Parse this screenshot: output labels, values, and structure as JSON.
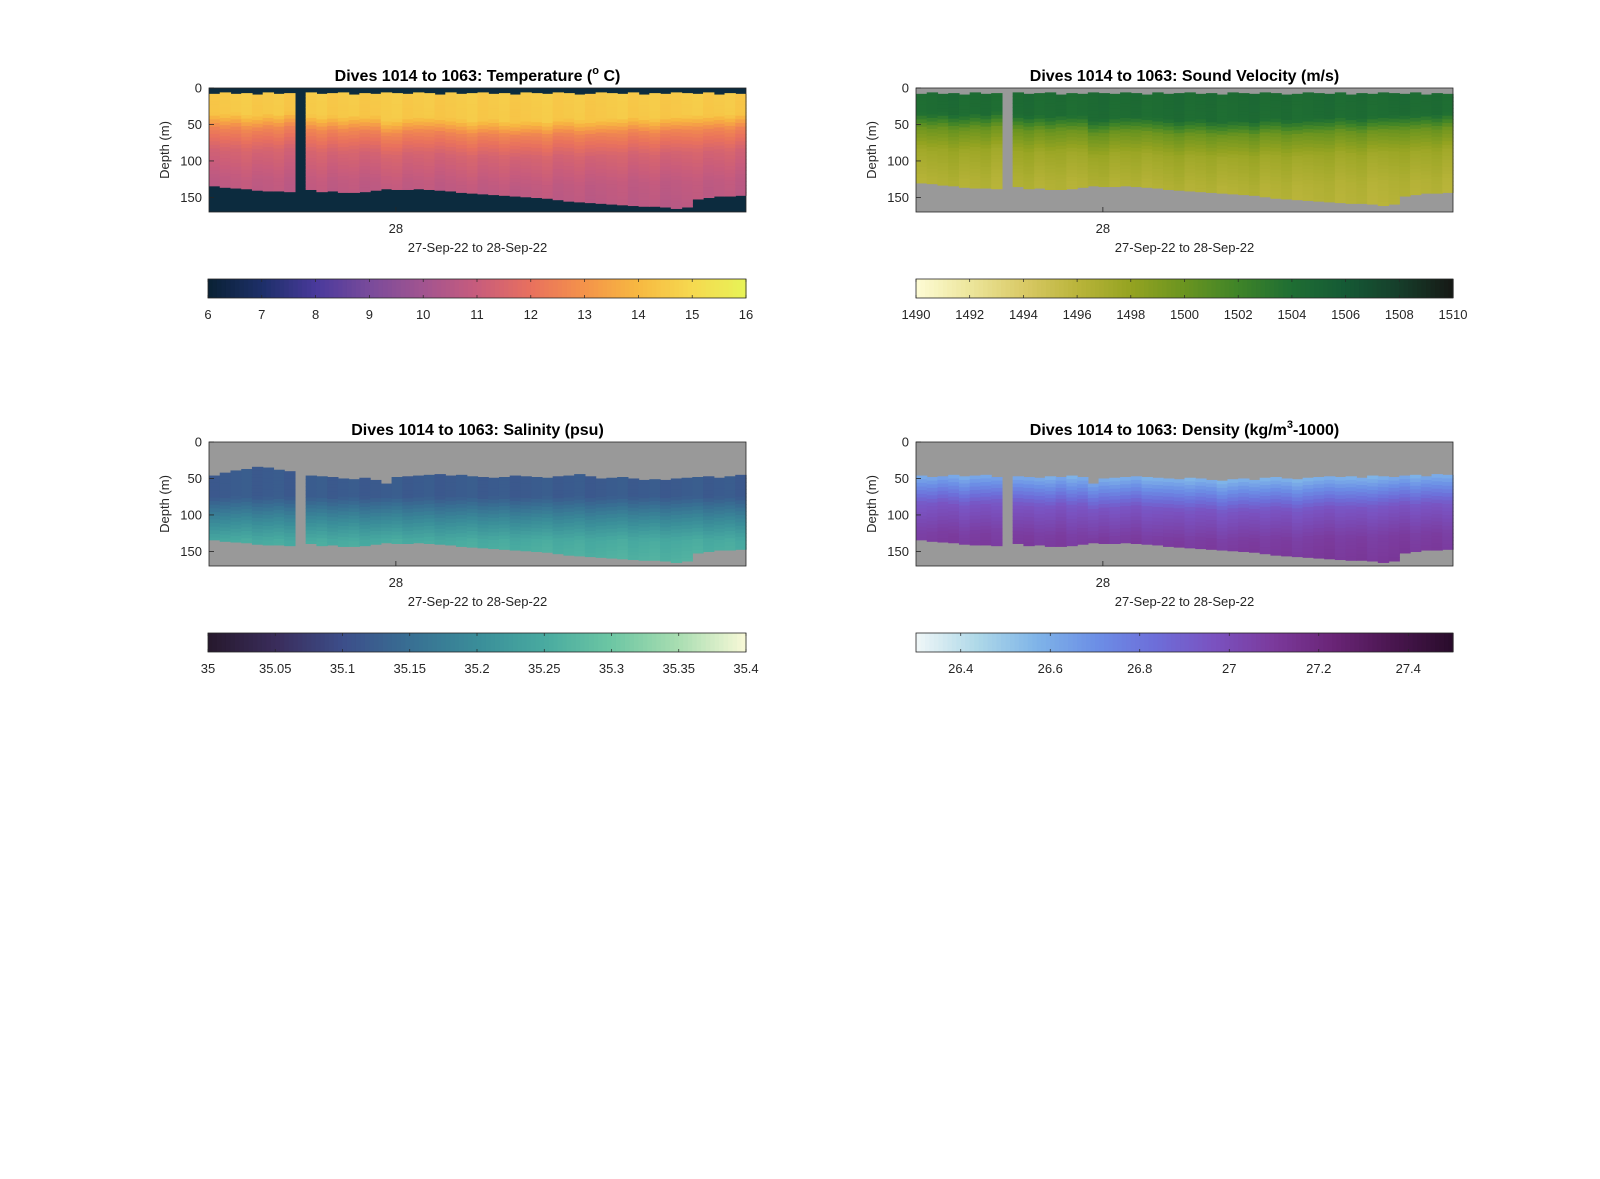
{
  "figure": {
    "background": "#ffffff",
    "no_data_color": "#999999"
  },
  "chart_data": [
    {
      "id": "temperature",
      "type": "heatmap",
      "title": "Dives 1014 to 1063: Temperature (",
      "title_sup": "o",
      "title_tail": " C)",
      "xlabel": "27-Sep-22 to 28-Sep-22",
      "ylabel": "Depth (m)",
      "x_ticks": [
        "28"
      ],
      "y_ticks": [
        0,
        50,
        100,
        150
      ],
      "ylim": [
        0,
        170
      ],
      "n_dives": 50,
      "missing_dive_index": 8,
      "no_data_color": "#0c2b3e",
      "colorbar": {
        "range": [
          6,
          16
        ],
        "ticks": [
          "6",
          "7",
          "8",
          "9",
          "10",
          "11",
          "12",
          "13",
          "14",
          "15",
          "16"
        ],
        "tick_values": [
          6,
          7,
          8,
          9,
          10,
          11,
          12,
          13,
          14,
          15,
          16
        ],
        "colors": [
          "#0a2236",
          "#1e2f6a",
          "#4a3a9c",
          "#7a4b9b",
          "#a25490",
          "#c85c7c",
          "#e8705e",
          "#f4934a",
          "#f7b841",
          "#f6d84f",
          "#e8f257"
        ]
      },
      "profile": [
        {
          "depth": 0,
          "value": 14.6
        },
        {
          "depth": 40,
          "value": 14.5
        },
        {
          "depth": 60,
          "value": 12.6
        },
        {
          "depth": 90,
          "value": 11.4
        },
        {
          "depth": 130,
          "value": 10.8
        },
        {
          "depth": 170,
          "value": 10.6
        }
      ],
      "top_depth": [
        8,
        6,
        8,
        7,
        9,
        6,
        8,
        7,
        5,
        6,
        8,
        7,
        6,
        9,
        7,
        8,
        6,
        7,
        8,
        6,
        7,
        9,
        6,
        8,
        7,
        6,
        8,
        7,
        9,
        6,
        7,
        8,
        6,
        7,
        9,
        8,
        6,
        7,
        8,
        6,
        9,
        7,
        8,
        6,
        7,
        8,
        6,
        9,
        7,
        8
      ],
      "bottom_depth": [
        134,
        136,
        137,
        138,
        140,
        141,
        141,
        142,
        137,
        139,
        142,
        141,
        143,
        143,
        142,
        140,
        138,
        139,
        139,
        138,
        139,
        140,
        141,
        143,
        144,
        145,
        146,
        147,
        148,
        149,
        150,
        151,
        153,
        155,
        156,
        157,
        158,
        159,
        160,
        161,
        162,
        162,
        163,
        165,
        163,
        152,
        150,
        148,
        148,
        147
      ],
      "thermocline_depth": [
        50,
        51,
        49,
        52,
        53,
        50,
        51,
        48,
        52,
        52,
        54,
        53,
        55,
        52,
        54,
        53,
        60,
        58,
        56,
        55,
        54,
        56,
        57,
        58,
        60,
        59,
        58,
        60,
        62,
        60,
        59,
        61,
        58,
        57,
        59,
        60,
        58,
        57,
        56,
        55,
        56,
        57,
        55,
        54,
        53,
        52,
        53,
        51,
        52,
        50
      ]
    },
    {
      "id": "sound-velocity",
      "type": "heatmap",
      "title": "Dives 1014 to 1063: Sound Velocity (m/s)",
      "xlabel": "27-Sep-22 to 28-Sep-22",
      "ylabel": "Depth (m)",
      "x_ticks": [
        "28"
      ],
      "y_ticks": [
        0,
        50,
        100,
        150
      ],
      "ylim": [
        0,
        170
      ],
      "n_dives": 50,
      "missing_dive_index": 8,
      "no_data_color": "#999999",
      "colorbar": {
        "range": [
          1490,
          1510
        ],
        "ticks": [
          "1490",
          "1492",
          "1494",
          "1496",
          "1498",
          "1500",
          "1502",
          "1504",
          "1506",
          "1508",
          "1510"
        ],
        "tick_values": [
          1490,
          1492,
          1494,
          1496,
          1498,
          1500,
          1502,
          1504,
          1506,
          1508,
          1510
        ],
        "colors": [
          "#fdfbd3",
          "#ece59a",
          "#d9c965",
          "#b9b43a",
          "#94a321",
          "#6a9420",
          "#3f8428",
          "#1f6e33",
          "#155a35",
          "#163f2b",
          "#161a16"
        ]
      },
      "profile": [
        {
          "depth": 0,
          "value": 1504.4
        },
        {
          "depth": 40,
          "value": 1504.2
        },
        {
          "depth": 60,
          "value": 1500.0
        },
        {
          "depth": 90,
          "value": 1497.5
        },
        {
          "depth": 130,
          "value": 1496.4
        },
        {
          "depth": 170,
          "value": 1496.0
        }
      ],
      "top_depth": [
        8,
        6,
        8,
        7,
        9,
        6,
        8,
        7,
        5,
        6,
        8,
        7,
        6,
        9,
        7,
        8,
        6,
        7,
        8,
        6,
        7,
        9,
        6,
        8,
        7,
        6,
        8,
        7,
        9,
        6,
        7,
        8,
        6,
        7,
        9,
        8,
        6,
        7,
        8,
        6,
        9,
        7,
        8,
        6,
        7,
        8,
        6,
        9,
        7,
        8
      ],
      "bottom_depth": [
        130,
        131,
        133,
        134,
        136,
        137,
        137,
        138,
        132,
        135,
        138,
        137,
        139,
        139,
        138,
        136,
        134,
        135,
        135,
        134,
        135,
        136,
        137,
        139,
        140,
        141,
        142,
        143,
        144,
        145,
        146,
        147,
        149,
        151,
        152,
        153,
        154,
        155,
        156,
        157,
        158,
        158,
        159,
        161,
        159,
        148,
        146,
        144,
        144,
        143
      ],
      "thermocline_depth": [
        50,
        51,
        49,
        52,
        53,
        50,
        51,
        48,
        52,
        52,
        54,
        53,
        55,
        52,
        54,
        53,
        60,
        58,
        56,
        55,
        54,
        56,
        57,
        58,
        60,
        59,
        58,
        60,
        62,
        60,
        59,
        61,
        58,
        57,
        59,
        60,
        58,
        57,
        56,
        55,
        56,
        57,
        55,
        54,
        53,
        52,
        53,
        51,
        52,
        50
      ]
    },
    {
      "id": "salinity",
      "type": "heatmap",
      "title": "Dives 1014 to 1063: Salinity (psu)",
      "xlabel": "27-Sep-22 to 28-Sep-22",
      "ylabel": "Depth (m)",
      "x_ticks": [
        "28"
      ],
      "y_ticks": [
        0,
        50,
        100,
        150
      ],
      "ylim": [
        0,
        170
      ],
      "n_dives": 50,
      "missing_dive_index": 8,
      "no_data_color": "#999999",
      "colorbar": {
        "range": [
          35,
          35.4
        ],
        "ticks": [
          "35",
          "35.05",
          "35.1",
          "35.15",
          "35.2",
          "35.25",
          "35.3",
          "35.35",
          "35.4"
        ],
        "tick_values": [
          35,
          35.05,
          35.1,
          35.15,
          35.2,
          35.25,
          35.3,
          35.35,
          35.4
        ],
        "colors": [
          "#27192e",
          "#3a2d5c",
          "#3c4e8a",
          "#386f93",
          "#3a8d99",
          "#48aaa0",
          "#6cc6a3",
          "#a7ddb1",
          "#f6f8d6"
        ]
      },
      "profile": [
        {
          "depth": 0,
          "value": 35.12
        },
        {
          "depth": 50,
          "value": 35.12
        },
        {
          "depth": 80,
          "value": 35.19
        },
        {
          "depth": 110,
          "value": 35.25
        },
        {
          "depth": 170,
          "value": 35.28
        }
      ],
      "top_depth": [
        46,
        42,
        39,
        37,
        34,
        35,
        38,
        40,
        48,
        46,
        47,
        48,
        50,
        51,
        49,
        52,
        57,
        48,
        47,
        46,
        45,
        44,
        46,
        45,
        47,
        48,
        49,
        48,
        46,
        47,
        48,
        49,
        47,
        46,
        44,
        47,
        50,
        49,
        48,
        50,
        52,
        51,
        52,
        50,
        49,
        48,
        47,
        49,
        47,
        45
      ],
      "bottom_depth": [
        134,
        136,
        137,
        138,
        140,
        141,
        141,
        142,
        137,
        139,
        142,
        141,
        143,
        143,
        142,
        140,
        138,
        139,
        139,
        138,
        139,
        140,
        141,
        143,
        144,
        145,
        146,
        147,
        148,
        149,
        150,
        151,
        153,
        155,
        156,
        157,
        158,
        159,
        160,
        161,
        162,
        162,
        163,
        165,
        163,
        152,
        150,
        148,
        148,
        147
      ],
      "thermocline_depth": [
        80,
        80,
        80,
        80,
        80,
        80,
        80,
        80,
        80,
        80,
        80,
        80,
        80,
        80,
        80,
        80,
        80,
        80,
        80,
        80,
        80,
        80,
        80,
        80,
        80,
        80,
        80,
        80,
        80,
        80,
        80,
        80,
        80,
        80,
        80,
        80,
        80,
        80,
        80,
        80,
        80,
        80,
        80,
        80,
        80,
        80,
        80,
        80,
        80,
        80
      ]
    },
    {
      "id": "density",
      "type": "heatmap",
      "title": "Dives 1014 to 1063: Density (kg/m",
      "title_sup": "3",
      "title_tail": "-1000)",
      "xlabel": "27-Sep-22 to 28-Sep-22",
      "ylabel": "Depth (m)",
      "x_ticks": [
        "28"
      ],
      "y_ticks": [
        0,
        50,
        100,
        150
      ],
      "ylim": [
        0,
        170
      ],
      "n_dives": 50,
      "missing_dive_index": 8,
      "no_data_color": "#999999",
      "colorbar": {
        "range": [
          26.3,
          27.5
        ],
        "ticks": [
          "26.4",
          "26.6",
          "26.8",
          "27",
          "27.2",
          "27.4"
        ],
        "tick_values": [
          26.4,
          26.6,
          26.8,
          27,
          27.2,
          27.4
        ],
        "colors": [
          "#eef6f7",
          "#aed8e8",
          "#7fb4e8",
          "#6c8fe6",
          "#6d6ed9",
          "#7a52c0",
          "#7b3a9c",
          "#6a2577",
          "#4a1650",
          "#2a0c2c"
        ]
      },
      "profile": [
        {
          "depth": 0,
          "value": 26.55
        },
        {
          "depth": 45,
          "value": 26.55
        },
        {
          "depth": 65,
          "value": 26.72
        },
        {
          "depth": 90,
          "value": 26.95
        },
        {
          "depth": 130,
          "value": 27.08
        },
        {
          "depth": 170,
          "value": 27.12
        }
      ],
      "top_depth": [
        46,
        48,
        47,
        45,
        47,
        46,
        45,
        48,
        48,
        47,
        48,
        49,
        47,
        48,
        46,
        48,
        57,
        50,
        49,
        48,
        47,
        48,
        49,
        50,
        51,
        49,
        50,
        52,
        53,
        51,
        50,
        52,
        49,
        48,
        50,
        51,
        49,
        48,
        47,
        48,
        47,
        49,
        46,
        47,
        48,
        46,
        45,
        47,
        44,
        45
      ],
      "bottom_depth": [
        134,
        136,
        137,
        138,
        140,
        141,
        141,
        142,
        137,
        139,
        142,
        141,
        143,
        143,
        142,
        140,
        138,
        139,
        139,
        138,
        139,
        140,
        141,
        143,
        144,
        145,
        146,
        147,
        148,
        149,
        150,
        151,
        153,
        155,
        156,
        157,
        158,
        159,
        160,
        161,
        162,
        162,
        163,
        165,
        163,
        152,
        150,
        148,
        148,
        147
      ],
      "thermocline_depth": [
        50,
        51,
        49,
        52,
        53,
        50,
        51,
        48,
        52,
        52,
        54,
        53,
        55,
        52,
        54,
        53,
        60,
        58,
        56,
        55,
        54,
        56,
        57,
        58,
        60,
        59,
        58,
        60,
        62,
        60,
        59,
        61,
        58,
        57,
        59,
        60,
        58,
        57,
        56,
        55,
        56,
        57,
        55,
        54,
        53,
        52,
        53,
        51,
        52,
        50
      ]
    }
  ]
}
